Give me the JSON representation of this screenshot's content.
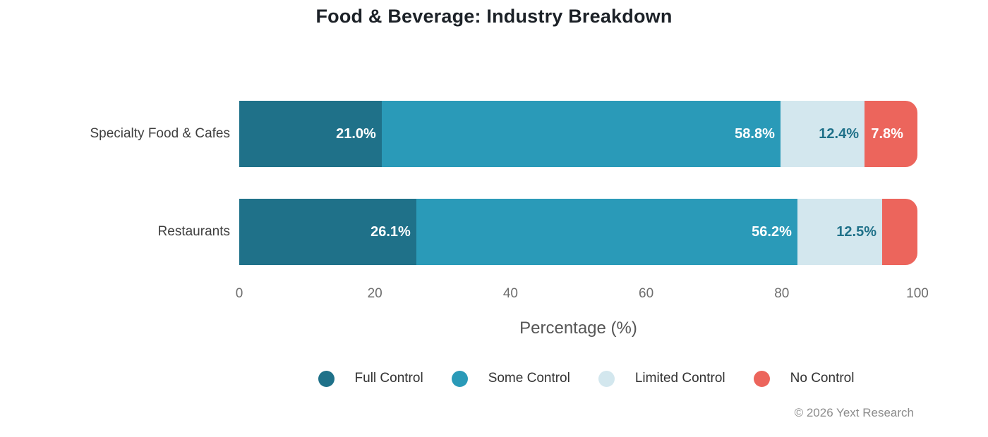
{
  "title": "Food & Beverage: Industry Breakdown",
  "footer": "© 2026 Yext Research",
  "colors": {
    "background": "#ffffff",
    "title_text": "#1c2127",
    "category_text": "#3f3f3f",
    "tick_text": "#6e6e6e",
    "axis_label_text": "#565656",
    "legend_text": "#333333",
    "footer_text": "#8c8c8c"
  },
  "chart_data": {
    "type": "bar",
    "orientation": "horizontal",
    "stacked": true,
    "grid": false,
    "legend_position": "bottom",
    "categories": [
      "Specialty Food & Cafes",
      "Restaurants"
    ],
    "series": [
      {
        "name": "Full Control",
        "color": "#1f7189",
        "label_color": "#ffffff",
        "values": [
          21.0,
          26.1
        ],
        "labels": [
          "21.0%",
          "26.1%"
        ]
      },
      {
        "name": "Some Control",
        "color": "#2a9ab8",
        "label_color": "#ffffff",
        "values": [
          58.8,
          56.2
        ],
        "labels": [
          "58.8%",
          "56.2%"
        ]
      },
      {
        "name": "Limited Control",
        "color": "#d3e7ee",
        "label_color": "#1f7189",
        "values": [
          12.4,
          12.5
        ],
        "labels": [
          "12.4%",
          "12.5%"
        ]
      },
      {
        "name": "No Control",
        "color": "#ec655c",
        "label_color": "#ffffff",
        "values": [
          7.8,
          5.2
        ],
        "labels": [
          "7.8%",
          ""
        ]
      }
    ],
    "xlabel": "Percentage (%)",
    "x_ticks": [
      0,
      20,
      40,
      60,
      80,
      100
    ],
    "xlim": [
      0,
      100
    ]
  }
}
